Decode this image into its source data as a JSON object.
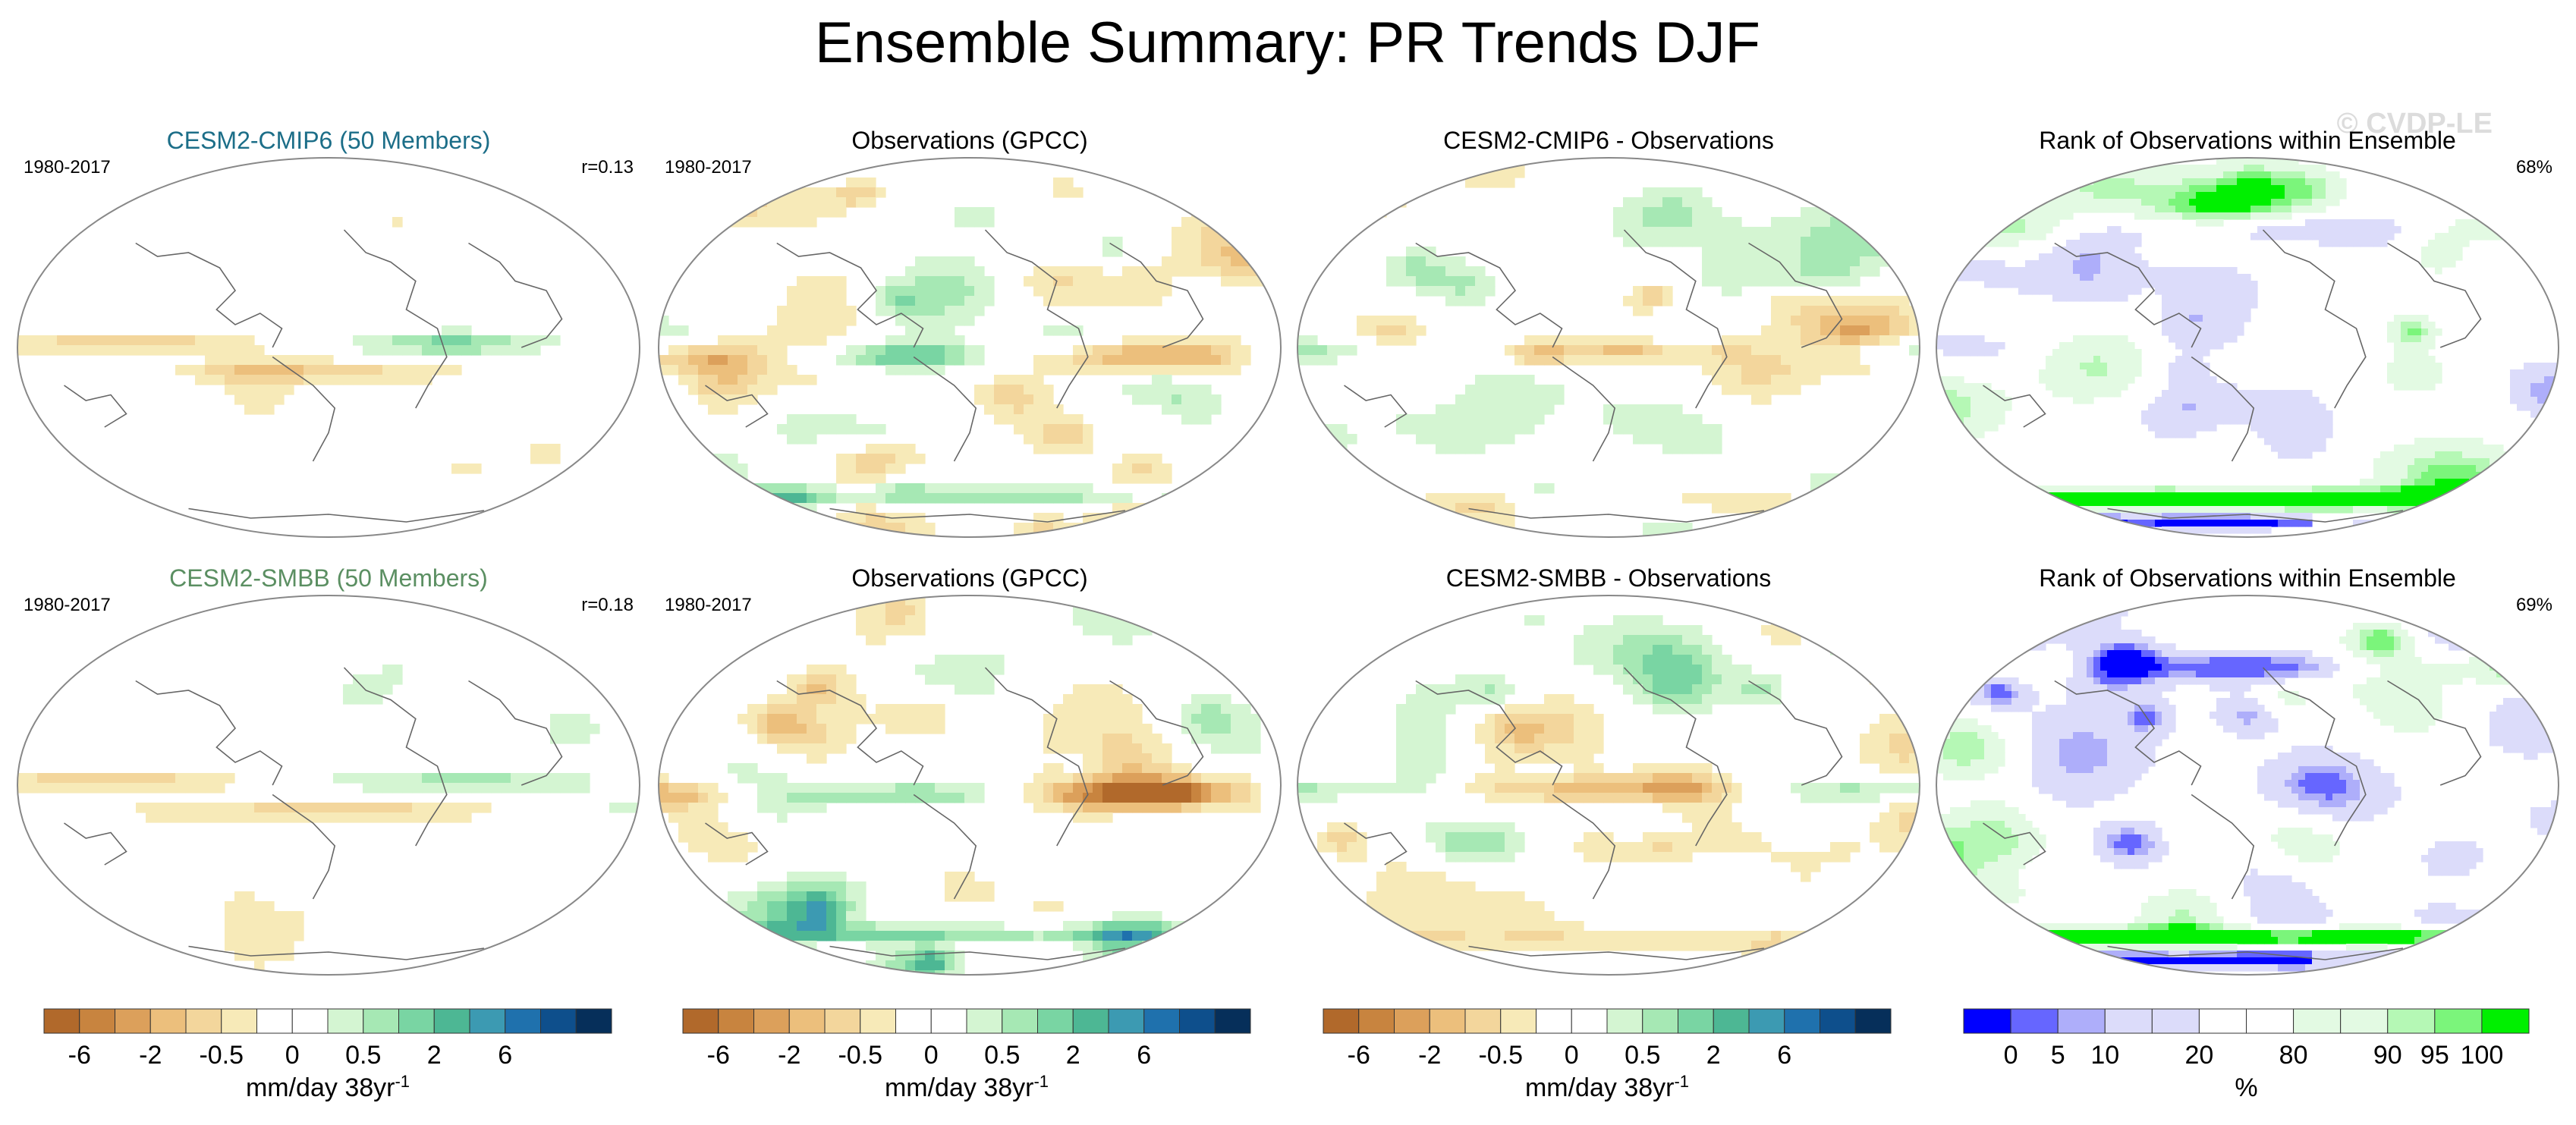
{
  "figure_title": "Ensemble Summary: PR Trends DJF",
  "watermark": "© CVDP-LE",
  "chart_data": {
    "type": "heatmap",
    "title": "Ensemble Summary: PR Trends DJF",
    "panels": [
      {
        "row": 1,
        "col": 1,
        "title": "CESM2-CMIP6 (50 Members)",
        "title_color": "#1c6e88",
        "left_label": "1980-2017",
        "right_label": "r=0.13",
        "field": "model_trend"
      },
      {
        "row": 1,
        "col": 2,
        "title": "Observations (GPCC)",
        "title_color": "#000000",
        "left_label": "1980-2017",
        "right_label": "",
        "field": "obs_trend"
      },
      {
        "row": 1,
        "col": 3,
        "title": "CESM2-CMIP6 - Observations",
        "title_color": "#000000",
        "left_label": "",
        "right_label": "",
        "field": "difference"
      },
      {
        "row": 1,
        "col": 4,
        "title": "Rank of Observations within Ensemble",
        "title_color": "#000000",
        "left_label": "",
        "right_label": "68%",
        "field": "rank"
      },
      {
        "row": 2,
        "col": 1,
        "title": "CESM2-SMBB (50 Members)",
        "title_color": "#5b8f62",
        "left_label": "1980-2017",
        "right_label": "r=0.18",
        "field": "model_trend"
      },
      {
        "row": 2,
        "col": 2,
        "title": "Observations (GPCC)",
        "title_color": "#000000",
        "left_label": "1980-2017",
        "right_label": "",
        "field": "obs_trend"
      },
      {
        "row": 2,
        "col": 3,
        "title": "CESM2-SMBB - Observations",
        "title_color": "#000000",
        "left_label": "",
        "right_label": "",
        "field": "difference"
      },
      {
        "row": 2,
        "col": 4,
        "title": "Rank of Observations within Ensemble",
        "title_color": "#000000",
        "left_label": "",
        "right_label": "69%",
        "field": "rank"
      }
    ],
    "colorbars": [
      {
        "label": "mm/day 38yr",
        "label_superscript": "-1",
        "colors": [
          "#b1692b",
          "#c8843f",
          "#dca05b",
          "#ecbf7c",
          "#f3d69c",
          "#f7eab8",
          "#ffffff",
          "#ffffff",
          "#d4f5d2",
          "#a6e8b4",
          "#79d5a3",
          "#4db794",
          "#3c9ab2",
          "#1f71ad",
          "#0e4f8c",
          "#062f5a"
        ],
        "tick_labels": [
          "-6",
          "-2",
          "-0.5",
          "0",
          "0.5",
          "2",
          "6"
        ],
        "tick_after_box": [
          1,
          3,
          5,
          7,
          9,
          11,
          13
        ]
      },
      {
        "label": "mm/day 38yr",
        "label_superscript": "-1",
        "colors": [
          "#b1692b",
          "#c8843f",
          "#dca05b",
          "#ecbf7c",
          "#f3d69c",
          "#f7eab8",
          "#ffffff",
          "#ffffff",
          "#d4f5d2",
          "#a6e8b4",
          "#79d5a3",
          "#4db794",
          "#3c9ab2",
          "#1f71ad",
          "#0e4f8c",
          "#062f5a"
        ],
        "tick_labels": [
          "-6",
          "-2",
          "-0.5",
          "0",
          "0.5",
          "2",
          "6"
        ],
        "tick_after_box": [
          1,
          3,
          5,
          7,
          9,
          11,
          13
        ]
      },
      {
        "label": "mm/day 38yr",
        "label_superscript": "-1",
        "colors": [
          "#b1692b",
          "#c8843f",
          "#dca05b",
          "#ecbf7c",
          "#f3d69c",
          "#f7eab8",
          "#ffffff",
          "#ffffff",
          "#d4f5d2",
          "#a6e8b4",
          "#79d5a3",
          "#4db794",
          "#3c9ab2",
          "#1f71ad",
          "#0e4f8c",
          "#062f5a"
        ],
        "tick_labels": [
          "-6",
          "-2",
          "-0.5",
          "0",
          "0.5",
          "2",
          "6"
        ],
        "tick_after_box": [
          1,
          3,
          5,
          7,
          9,
          11,
          13
        ]
      },
      {
        "label": "%",
        "label_superscript": "",
        "colors": [
          "#0000ff",
          "#6666ff",
          "#aeaefa",
          "#dcdcfa",
          "#dcdcfa",
          "#ffffff",
          "#ffffff",
          "#e3fae3",
          "#e3fae3",
          "#b5f8b5",
          "#7bf57b",
          "#00f000"
        ],
        "tick_labels": [
          "0",
          "5",
          "10",
          "20",
          "80",
          "90",
          "95",
          "100"
        ],
        "tick_after_box": [
          1,
          2,
          3,
          5,
          7,
          9,
          10,
          11
        ]
      }
    ]
  }
}
